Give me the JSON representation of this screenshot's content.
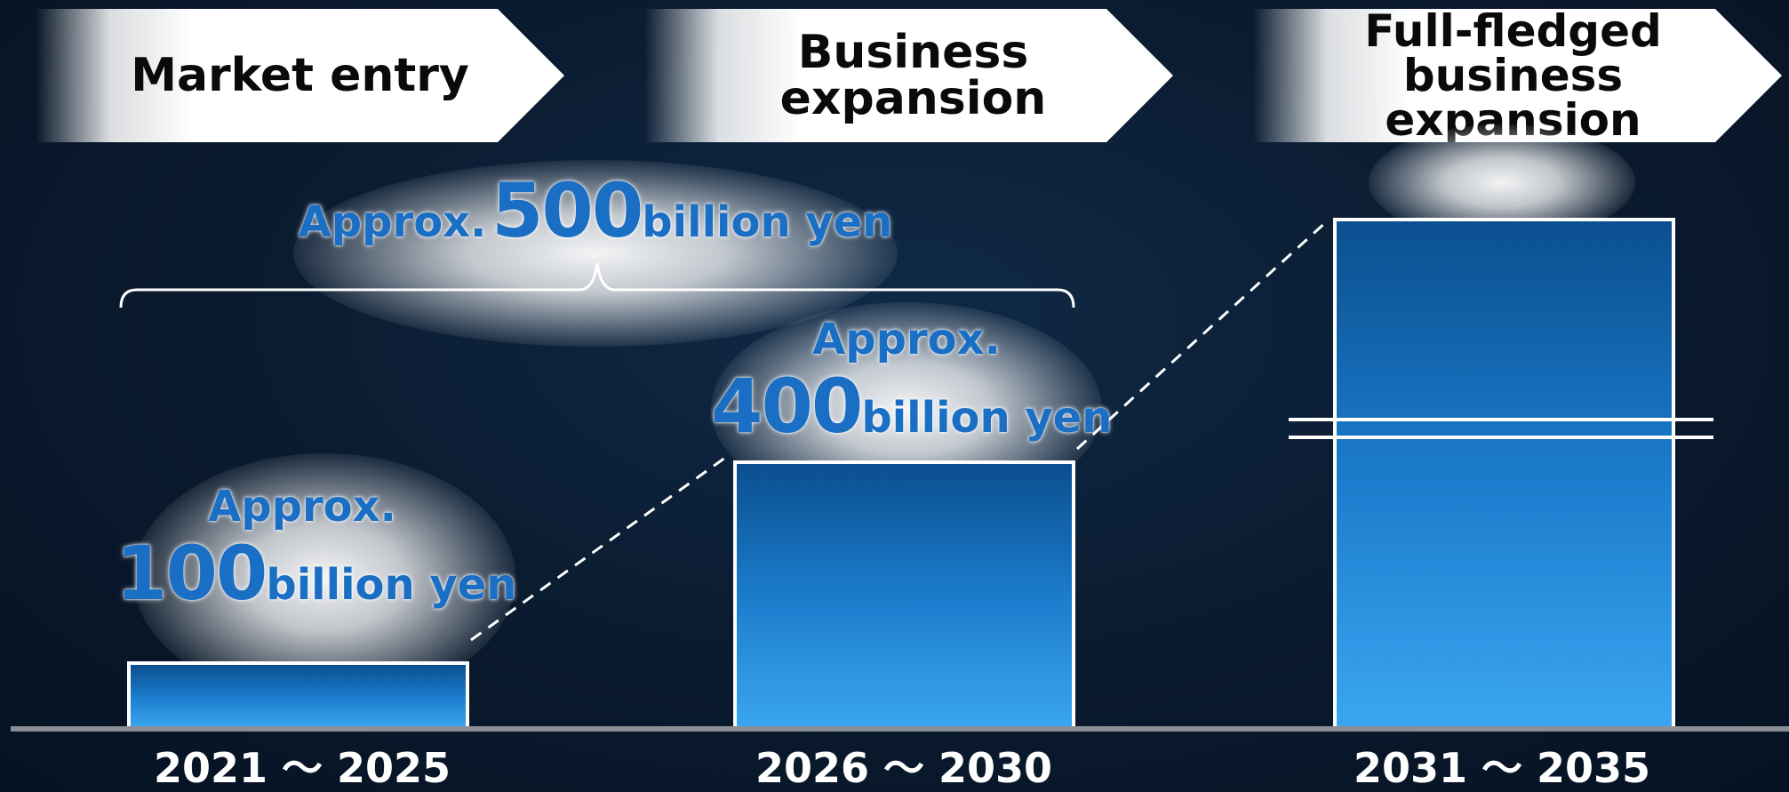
{
  "chart_data": {
    "type": "bar",
    "title": "",
    "xlabel": "",
    "ylabel": "",
    "phases": [
      "Market entry",
      "Business expansion",
      "Full-fledged business expansion"
    ],
    "phase_lines": [
      [
        "Market entry"
      ],
      [
        "Business expansion"
      ],
      [
        "Full-fledged",
        "business expansion"
      ]
    ],
    "categories": [
      "2021 ～ 2025",
      "2026 ～ 2030",
      "2031 ～ 2035"
    ],
    "values": [
      100,
      400,
      null
    ],
    "value_labels": [
      {
        "prefix": "Approx.",
        "number": "100",
        "unit": "billion yen"
      },
      {
        "prefix": "Approx.",
        "number": "400",
        "unit": "billion yen"
      },
      null
    ],
    "cumulative": {
      "prefix": "Approx.",
      "number": "500",
      "unit": "billion yen",
      "spans": [
        "2021 ～ 2025",
        "2026 ～ 2030"
      ]
    },
    "unit": "billion yen",
    "third_bar_axis_break": true,
    "grid": false,
    "legend": "none",
    "colors": {
      "bar_top": "#0b4f8f",
      "bar_bottom": "#3aa6f2",
      "label": "#1a6fc4",
      "outline": "#ffffff",
      "background": "#0a1a2e"
    }
  }
}
